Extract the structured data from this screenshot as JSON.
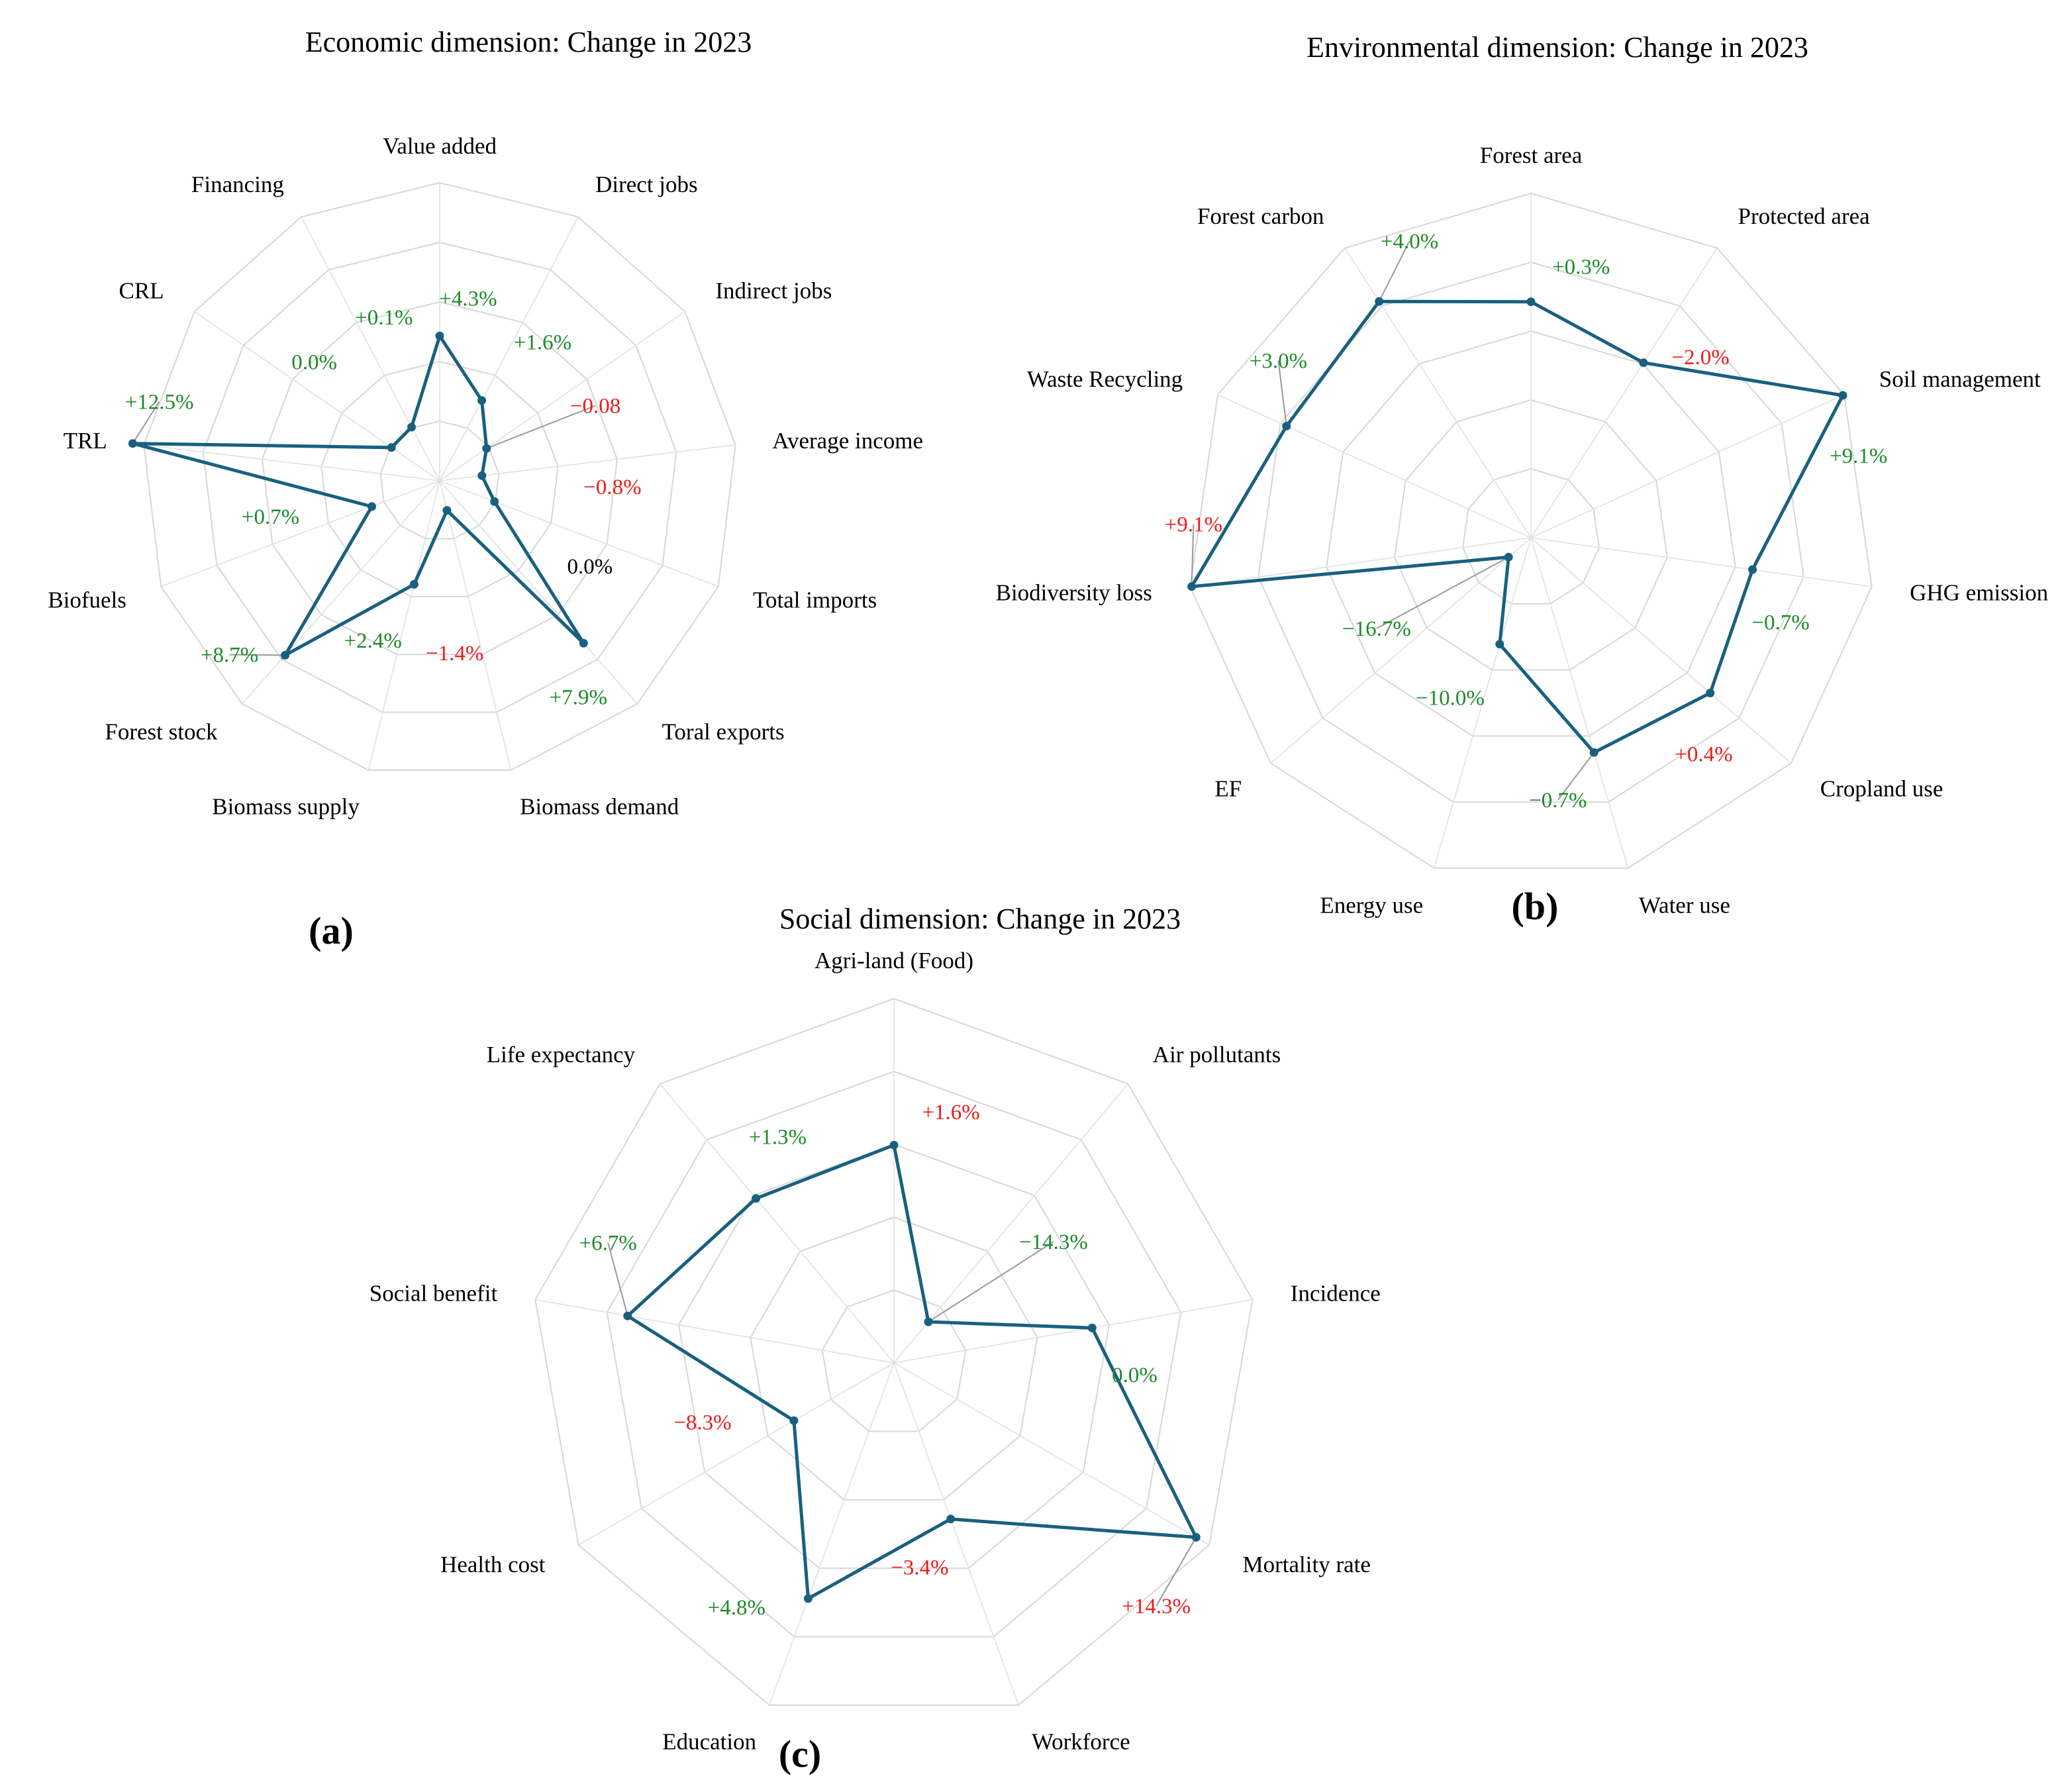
{
  "colors": {
    "series": "#19607f",
    "positive": "#1e8a2a",
    "negative": "#ee1c1c",
    "neutral": "#000000",
    "grid": "#d7d7d7"
  },
  "chart_data": [
    {
      "type": "radar",
      "panel": "(a)",
      "title": "Economic dimension: Change in 2023",
      "categories": [
        "Value added",
        "Direct jobs",
        "Indirect jobs",
        "Average income",
        "Total imports",
        "Toral exports",
        "Biomass demand",
        "Biomass supply",
        "Forest stock",
        "Biofuels",
        "TRL",
        "CRL",
        "Financing"
      ],
      "series": [
        {
          "values": [
            4.3,
            1.6,
            -0.08,
            -0.8,
            0.0,
            7.9,
            -1.4,
            2.4,
            8.7,
            0.7,
            12.5,
            0.0,
            0.1
          ],
          "value_labels": [
            "+4.3%",
            "+1.6%",
            "−0.08",
            "−0.8%",
            "0.0%",
            "+7.9%",
            "−1.4%",
            "+2.4%",
            "+8.7%",
            "+0.7%",
            "+12.5%",
            "0.0%",
            "+0.1%"
          ],
          "label_colors": [
            "positive",
            "positive",
            "negative",
            "negative",
            "neutral",
            "positive",
            "negative",
            "positive",
            "positive",
            "positive",
            "positive",
            "positive",
            "positive"
          ]
        }
      ],
      "grid_rings": 5,
      "legend": "none"
    },
    {
      "type": "radar",
      "panel": "(b)",
      "title": "Environmental dimension: Change in 2023",
      "categories": [
        "Forest area",
        "Protected area",
        "Soil management",
        "GHG emission",
        "Cropland use",
        "Water use",
        "Energy use",
        "EF",
        "Biodiversity loss",
        "Waste Recycling",
        "Forest carbon"
      ],
      "series": [
        {
          "values": [
            0.3,
            -2.0,
            9.1,
            -0.7,
            0.4,
            -0.7,
            -10.0,
            -16.7,
            9.1,
            3.0,
            4.0
          ],
          "value_labels": [
            "+0.3%",
            "−2.0%",
            "+9.1%",
            "−0.7%",
            "+0.4%",
            "−0.7%",
            "−10.0%",
            "−16.7%",
            "+9.1%",
            "+3.0%",
            "+4.0%"
          ],
          "label_colors": [
            "positive",
            "negative",
            "positive",
            "positive",
            "negative",
            "positive",
            "positive",
            "positive",
            "negative",
            "positive",
            "positive"
          ]
        }
      ],
      "grid_rings": 5,
      "legend": "none"
    },
    {
      "type": "radar",
      "panel": "(c)",
      "title": "Social dimension: Change in 2023",
      "categories": [
        "Agri-land (Food)",
        "Air pollutants",
        "Incidence",
        "Mortality rate",
        "Workforce",
        "Education",
        "Health cost",
        "Social benefit",
        "Life expectancy"
      ],
      "series": [
        {
          "values": [
            1.6,
            -14.3,
            0.0,
            14.3,
            -3.4,
            4.8,
            -8.3,
            6.7,
            1.3
          ],
          "value_labels": [
            "+1.6%",
            "−14.3%",
            "0.0%",
            "+14.3%",
            "−3.4%",
            "+4.8%",
            "−8.3%",
            "+6.7%",
            "+1.3%"
          ],
          "label_colors": [
            "negative",
            "positive",
            "positive",
            "negative",
            "negative",
            "positive",
            "negative",
            "positive",
            "positive"
          ]
        }
      ],
      "grid_rings": 5,
      "legend": "none"
    }
  ]
}
